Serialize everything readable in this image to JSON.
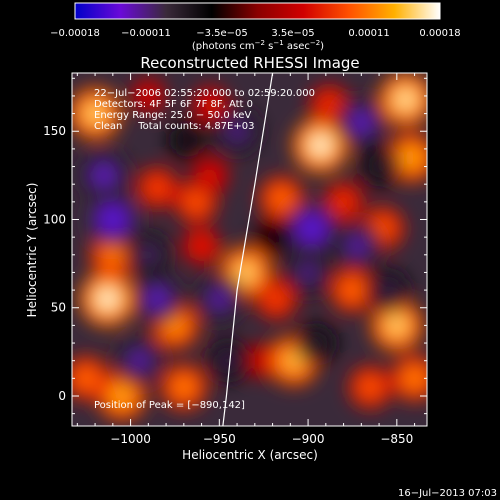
{
  "chart_data": {
    "type": "heatmap",
    "title": "Reconstructed RHESSI Image",
    "xlabel": "Heliocentric X (arcsec)",
    "ylabel": "Heliocentric Y (arcsec)",
    "xlim": [
      -1033,
      -833
    ],
    "ylim": [
      -17,
      183
    ],
    "x_ticks": [
      -1000,
      -950,
      -900,
      -850
    ],
    "x_tick_labels": [
      "−1000",
      "−950",
      "−900",
      "−850"
    ],
    "y_ticks": [
      0,
      50,
      100,
      150
    ],
    "y_tick_labels": [
      "0",
      "50",
      "100",
      "150"
    ],
    "colorbar": {
      "range": [
        -0.00018,
        0.00018
      ],
      "ticks": [
        -0.00018,
        -0.00011,
        -3.5e-05,
        3.5e-05,
        0.00011,
        0.00018
      ],
      "tick_labels": [
        "−0.00018",
        "−0.00011",
        "−3.5e−05",
        "3.5e−05",
        "0.00011",
        "0.00018"
      ],
      "units_prefix": "(photons cm",
      "units_exp1": "−2",
      "units_mid": " s",
      "units_exp2": "−1",
      "units_mid2": " asec",
      "units_exp3": "−2",
      "units_suffix": ")",
      "colors": [
        "#0000c8",
        "#6a0ad8",
        "#3a2a3a",
        "#000000",
        "#8a0000",
        "#d00000",
        "#ff5000",
        "#ffb000",
        "#ffffff"
      ]
    },
    "info_lines": [
      "22−Jul−2006 02:55:20.000 to 02:59:20.000",
      "Detectors: 4F 5F 6F 7F 8F, Att 0",
      "Energy Range: 25.0 − 50.0 keV",
      "Clean     Total counts: 4.87E+03"
    ],
    "peak_label": "Position of Peak = [−890,142]",
    "limb_curve": [
      [
        -920,
        183
      ],
      [
        -930,
        120
      ],
      [
        -940,
        60
      ],
      [
        -946,
        0
      ],
      [
        -948,
        -17
      ]
    ],
    "blobs": [
      {
        "x": -1020,
        "y": 160,
        "v": 0.00016
      },
      {
        "x": -1013,
        "y": 55,
        "v": 0.00018
      },
      {
        "x": -1010,
        "y": 80,
        "v": 0.00012
      },
      {
        "x": -1025,
        "y": 10,
        "v": 0.00011
      },
      {
        "x": -1005,
        "y": 0,
        "v": 0.00014
      },
      {
        "x": -985,
        "y": 118,
        "v": 9e-05
      },
      {
        "x": -963,
        "y": 110,
        "v": 0.0001
      },
      {
        "x": -955,
        "y": 125,
        "v": 6e-05
      },
      {
        "x": -975,
        "y": 40,
        "v": 0.00013
      },
      {
        "x": -970,
        "y": 5,
        "v": 0.00012
      },
      {
        "x": -960,
        "y": 85,
        "v": 7e-05
      },
      {
        "x": -935,
        "y": 70,
        "v": 0.00016
      },
      {
        "x": -915,
        "y": 112,
        "v": 0.00011
      },
      {
        "x": -925,
        "y": 20,
        "v": 5e-05
      },
      {
        "x": -918,
        "y": 55,
        "v": 9e-05
      },
      {
        "x": -893,
        "y": 142,
        "v": 0.00018
      },
      {
        "x": -888,
        "y": 165,
        "v": 8e-05
      },
      {
        "x": -908,
        "y": 20,
        "v": 0.00015
      },
      {
        "x": -880,
        "y": 110,
        "v": 8e-05
      },
      {
        "x": -875,
        "y": 60,
        "v": 0.00011
      },
      {
        "x": -858,
        "y": 95,
        "v": 0.0001
      },
      {
        "x": -845,
        "y": 168,
        "v": 0.00017
      },
      {
        "x": -842,
        "y": 135,
        "v": 0.00014
      },
      {
        "x": -850,
        "y": 40,
        "v": 0.00016
      },
      {
        "x": -865,
        "y": 5,
        "v": 0.0001
      },
      {
        "x": -840,
        "y": 10,
        "v": 0.00012
      },
      {
        "x": -990,
        "y": 170,
        "v": 5e-05
      },
      {
        "x": -955,
        "y": 165,
        "v": 6e-05
      },
      {
        "x": -1010,
        "y": 100,
        "v": -0.00016
      },
      {
        "x": -1015,
        "y": 125,
        "v": -0.00014
      },
      {
        "x": -990,
        "y": 80,
        "v": -0.00011
      },
      {
        "x": -985,
        "y": 55,
        "v": -0.00014
      },
      {
        "x": -995,
        "y": 20,
        "v": -0.00013
      },
      {
        "x": -950,
        "y": 55,
        "v": -0.00013
      },
      {
        "x": -940,
        "y": 150,
        "v": -0.00012
      },
      {
        "x": -945,
        "y": 20,
        "v": -0.0001
      },
      {
        "x": -900,
        "y": 70,
        "v": -0.00012
      },
      {
        "x": -898,
        "y": 95,
        "v": -0.00016
      },
      {
        "x": -895,
        "y": 30,
        "v": -9e-05
      },
      {
        "x": -872,
        "y": 85,
        "v": -0.00013
      },
      {
        "x": -860,
        "y": 130,
        "v": -9e-05
      },
      {
        "x": -870,
        "y": 155,
        "v": -0.00014
      },
      {
        "x": -855,
        "y": 60,
        "v": -0.0001
      },
      {
        "x": -920,
        "y": 90,
        "v": -6e-05
      },
      {
        "x": -968,
        "y": 145,
        "v": -8e-05
      }
    ]
  },
  "footer": {
    "timestamp": "16−Jul−2013 07:03"
  }
}
